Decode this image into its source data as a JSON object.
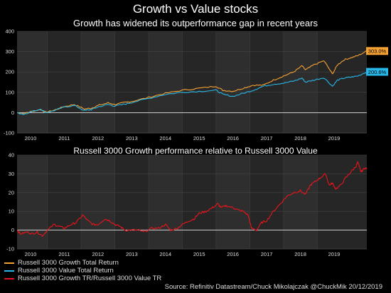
{
  "title": "Growth vs Value stocks",
  "subtitle": "Growth has widened its outperformance gap in recent years",
  "source": "Source: Refinitiv Datastream/Chuck Mikolajczak @ChuckMik 20/12/2019",
  "legend": [
    {
      "label": "Russell 3000 Growth Total Return",
      "color": "#f5a133"
    },
    {
      "label": "Russell 3000 Value Total Return",
      "color": "#27b7e8"
    },
    {
      "label": "Russell 3000 Growth TR/Russell 3000 Value TR",
      "color": "#e8141b"
    }
  ],
  "chart_data": [
    {
      "type": "line",
      "title": "",
      "xlabel": "",
      "ylabel": "",
      "x_ticks": [
        "2010",
        "2011",
        "2012",
        "2013",
        "2014",
        "2015",
        "2016",
        "2017",
        "2018",
        "2019"
      ],
      "xlim": [
        2009.6,
        2019.97
      ],
      "ylim": [
        -100,
        400
      ],
      "y_ticks": [
        -100,
        0,
        100,
        200,
        300,
        400
      ],
      "grid": true,
      "series": [
        {
          "name": "Russell 3000 Growth Total Return",
          "color": "#f5a133",
          "end_label": "303.0%",
          "points": [
            [
              2009.6,
              0
            ],
            [
              2009.8,
              -5
            ],
            [
              2010.0,
              5
            ],
            [
              2010.3,
              15
            ],
            [
              2010.45,
              2
            ],
            [
              2010.7,
              12
            ],
            [
              2011.0,
              30
            ],
            [
              2011.3,
              40
            ],
            [
              2011.6,
              18
            ],
            [
              2011.8,
              22
            ],
            [
              2012.0,
              35
            ],
            [
              2012.3,
              48
            ],
            [
              2012.5,
              40
            ],
            [
              2012.8,
              50
            ],
            [
              2013.0,
              55
            ],
            [
              2013.5,
              75
            ],
            [
              2014.0,
              95
            ],
            [
              2014.5,
              110
            ],
            [
              2015.0,
              120
            ],
            [
              2015.5,
              130
            ],
            [
              2015.7,
              110
            ],
            [
              2016.0,
              105
            ],
            [
              2016.3,
              120
            ],
            [
              2016.6,
              135
            ],
            [
              2016.9,
              135
            ],
            [
              2017.2,
              160
            ],
            [
              2017.5,
              180
            ],
            [
              2017.8,
              200
            ],
            [
              2018.05,
              230
            ],
            [
              2018.15,
              210
            ],
            [
              2018.4,
              235
            ],
            [
              2018.7,
              255
            ],
            [
              2018.95,
              190
            ],
            [
              2019.1,
              235
            ],
            [
              2019.3,
              260
            ],
            [
              2019.5,
              270
            ],
            [
              2019.7,
              280
            ],
            [
              2019.97,
              303
            ]
          ]
        },
        {
          "name": "Russell 3000 Value Total Return",
          "color": "#27b7e8",
          "end_label": "200.6%",
          "points": [
            [
              2009.6,
              0
            ],
            [
              2009.8,
              -8
            ],
            [
              2010.0,
              3
            ],
            [
              2010.3,
              18
            ],
            [
              2010.45,
              0
            ],
            [
              2010.7,
              10
            ],
            [
              2011.0,
              28
            ],
            [
              2011.3,
              35
            ],
            [
              2011.6,
              10
            ],
            [
              2011.8,
              15
            ],
            [
              2012.0,
              28
            ],
            [
              2012.3,
              40
            ],
            [
              2012.5,
              32
            ],
            [
              2012.8,
              42
            ],
            [
              2013.0,
              50
            ],
            [
              2013.5,
              70
            ],
            [
              2014.0,
              90
            ],
            [
              2014.5,
              100
            ],
            [
              2015.0,
              105
            ],
            [
              2015.5,
              110
            ],
            [
              2015.7,
              90
            ],
            [
              2016.0,
              80
            ],
            [
              2016.3,
              95
            ],
            [
              2016.6,
              110
            ],
            [
              2016.9,
              130
            ],
            [
              2017.2,
              140
            ],
            [
              2017.5,
              145
            ],
            [
              2017.8,
              155
            ],
            [
              2018.05,
              170
            ],
            [
              2018.15,
              150
            ],
            [
              2018.4,
              160
            ],
            [
              2018.7,
              172
            ],
            [
              2018.95,
              130
            ],
            [
              2019.1,
              160
            ],
            [
              2019.3,
              170
            ],
            [
              2019.5,
              175
            ],
            [
              2019.7,
              180
            ],
            [
              2019.97,
              200.6
            ]
          ]
        }
      ]
    },
    {
      "type": "line",
      "title": "Russell 3000 Growth performance relative to Russell 3000 Value",
      "xlabel": "",
      "ylabel": "",
      "x_ticks": [
        "2010",
        "2011",
        "2012",
        "2013",
        "2014",
        "2015",
        "2016",
        "2017",
        "2018",
        "2019"
      ],
      "xlim": [
        2009.6,
        2019.97
      ],
      "ylim": [
        -10,
        40
      ],
      "y_ticks": [
        -10,
        0,
        10,
        20,
        30,
        40
      ],
      "grid": true,
      "series": [
        {
          "name": "Russell 3000 Growth TR/Russell 3000 Value TR",
          "color": "#e8141b",
          "points": [
            [
              2009.6,
              0
            ],
            [
              2009.7,
              -2
            ],
            [
              2009.9,
              -1
            ],
            [
              2010.05,
              -2
            ],
            [
              2010.2,
              -1
            ],
            [
              2010.35,
              -3
            ],
            [
              2010.5,
              0
            ],
            [
              2010.7,
              3
            ],
            [
              2010.85,
              2
            ],
            [
              2011.0,
              1
            ],
            [
              2011.2,
              3
            ],
            [
              2011.35,
              4
            ],
            [
              2011.55,
              8
            ],
            [
              2011.7,
              5
            ],
            [
              2011.85,
              3
            ],
            [
              2012.0,
              3
            ],
            [
              2012.2,
              6
            ],
            [
              2012.35,
              5
            ],
            [
              2012.5,
              3
            ],
            [
              2012.65,
              2
            ],
            [
              2012.8,
              0
            ],
            [
              2013.0,
              0
            ],
            [
              2013.2,
              0
            ],
            [
              2013.35,
              -1
            ],
            [
              2013.6,
              1
            ],
            [
              2013.8,
              1
            ],
            [
              2014.0,
              3
            ],
            [
              2014.15,
              0
            ],
            [
              2014.35,
              1
            ],
            [
              2014.5,
              3
            ],
            [
              2014.7,
              5
            ],
            [
              2014.85,
              6
            ],
            [
              2015.0,
              9
            ],
            [
              2015.2,
              10
            ],
            [
              2015.4,
              12
            ],
            [
              2015.55,
              14
            ],
            [
              2015.65,
              12
            ],
            [
              2015.8,
              13
            ],
            [
              2016.0,
              12
            ],
            [
              2016.1,
              11
            ],
            [
              2016.3,
              10
            ],
            [
              2016.45,
              8
            ],
            [
              2016.55,
              1
            ],
            [
              2016.7,
              0
            ],
            [
              2016.85,
              4
            ],
            [
              2017.0,
              5
            ],
            [
              2017.2,
              10
            ],
            [
              2017.4,
              14
            ],
            [
              2017.6,
              18
            ],
            [
              2017.8,
              20
            ],
            [
              2018.0,
              21
            ],
            [
              2018.15,
              19
            ],
            [
              2018.3,
              24
            ],
            [
              2018.45,
              26
            ],
            [
              2018.6,
              28
            ],
            [
              2018.75,
              30
            ],
            [
              2018.85,
              24
            ],
            [
              2018.95,
              25
            ],
            [
              2019.05,
              22
            ],
            [
              2019.2,
              24
            ],
            [
              2019.35,
              28
            ],
            [
              2019.5,
              31
            ],
            [
              2019.65,
              34
            ],
            [
              2019.7,
              36
            ],
            [
              2019.8,
              31
            ],
            [
              2019.9,
              33
            ],
            [
              2019.97,
              33
            ]
          ]
        }
      ]
    }
  ]
}
